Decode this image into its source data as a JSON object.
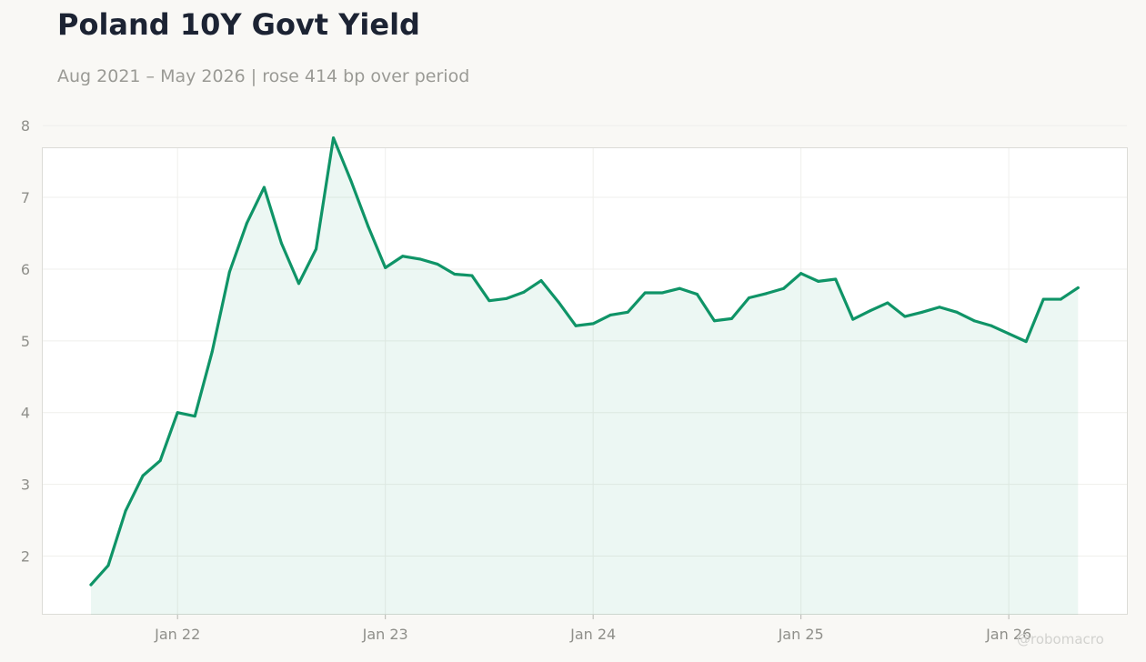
{
  "header": {
    "title": "Poland 10Y Govt Yield",
    "subtitle": "Aug 2021 – May 2026 | rose 414 bp over period"
  },
  "watermark": "@robomacro",
  "colors": {
    "line": "#0f9467",
    "fill": "#0f9467",
    "background": "#f9f8f5",
    "plot_background": "#ffffff",
    "grid": "#efefec",
    "title": "#1c2333",
    "subtitle": "#9a9a95",
    "tick": "#8f8f8a"
  },
  "chart_data": {
    "type": "area",
    "title": "Poland 10Y Govt Yield",
    "subtitle": "Aug 2021 – May 2026 | rose 414 bp over period",
    "xlabel": "",
    "ylabel": "",
    "x_range": [
      "2021-08",
      "2026-05"
    ],
    "ylim": [
      1.1,
      8.3
    ],
    "grid": true,
    "legend": "none",
    "y_ticks": [
      2,
      3,
      4,
      5,
      6,
      7,
      8
    ],
    "y_tick_labels": [
      "2",
      "3",
      "4",
      "5",
      "6",
      "7",
      "8"
    ],
    "x_ticks": [
      "2022-01",
      "2023-01",
      "2024-01",
      "2025-01",
      "2026-01"
    ],
    "x_tick_labels": [
      "Jan 22",
      "Jan 23",
      "Jan 24",
      "Jan 25",
      "Jan 26"
    ],
    "series": [
      {
        "x": [
          "2021-08",
          "2021-09",
          "2021-10",
          "2021-11",
          "2021-12",
          "2022-01",
          "2022-02",
          "2022-03",
          "2022-04",
          "2022-05",
          "2022-06",
          "2022-07",
          "2022-08",
          "2022-09",
          "2022-10",
          "2022-11",
          "2022-12",
          "2023-01",
          "2023-02",
          "2023-03",
          "2023-04",
          "2023-05",
          "2023-06",
          "2023-07",
          "2023-08",
          "2023-09",
          "2023-10",
          "2023-11",
          "2023-12",
          "2024-01",
          "2024-02",
          "2024-03",
          "2024-04",
          "2024-05",
          "2024-06",
          "2024-07",
          "2024-08",
          "2024-09",
          "2024-10",
          "2024-11",
          "2024-12",
          "2025-01",
          "2025-02",
          "2025-03",
          "2025-04",
          "2025-05",
          "2025-06",
          "2025-07",
          "2025-08",
          "2025-09",
          "2025-10",
          "2025-11",
          "2025-12",
          "2026-01",
          "2026-02",
          "2026-03",
          "2026-04",
          "2026-05"
        ],
        "values": [
          1.6,
          1.87,
          2.63,
          3.12,
          3.33,
          4.0,
          3.95,
          4.85,
          5.96,
          6.64,
          7.14,
          6.36,
          5.8,
          6.28,
          7.83,
          7.24,
          6.6,
          6.02,
          6.18,
          6.14,
          6.07,
          5.93,
          5.91,
          5.56,
          5.59,
          5.68,
          5.84,
          5.54,
          5.21,
          5.24,
          5.36,
          5.4,
          5.67,
          5.67,
          5.73,
          5.65,
          5.28,
          5.31,
          5.6,
          5.66,
          5.73,
          5.94,
          5.83,
          5.86,
          5.3,
          5.42,
          5.53,
          5.34,
          5.4,
          5.47,
          5.4,
          5.28,
          5.21,
          5.1,
          4.99,
          5.58,
          5.58,
          5.74
        ]
      }
    ]
  }
}
